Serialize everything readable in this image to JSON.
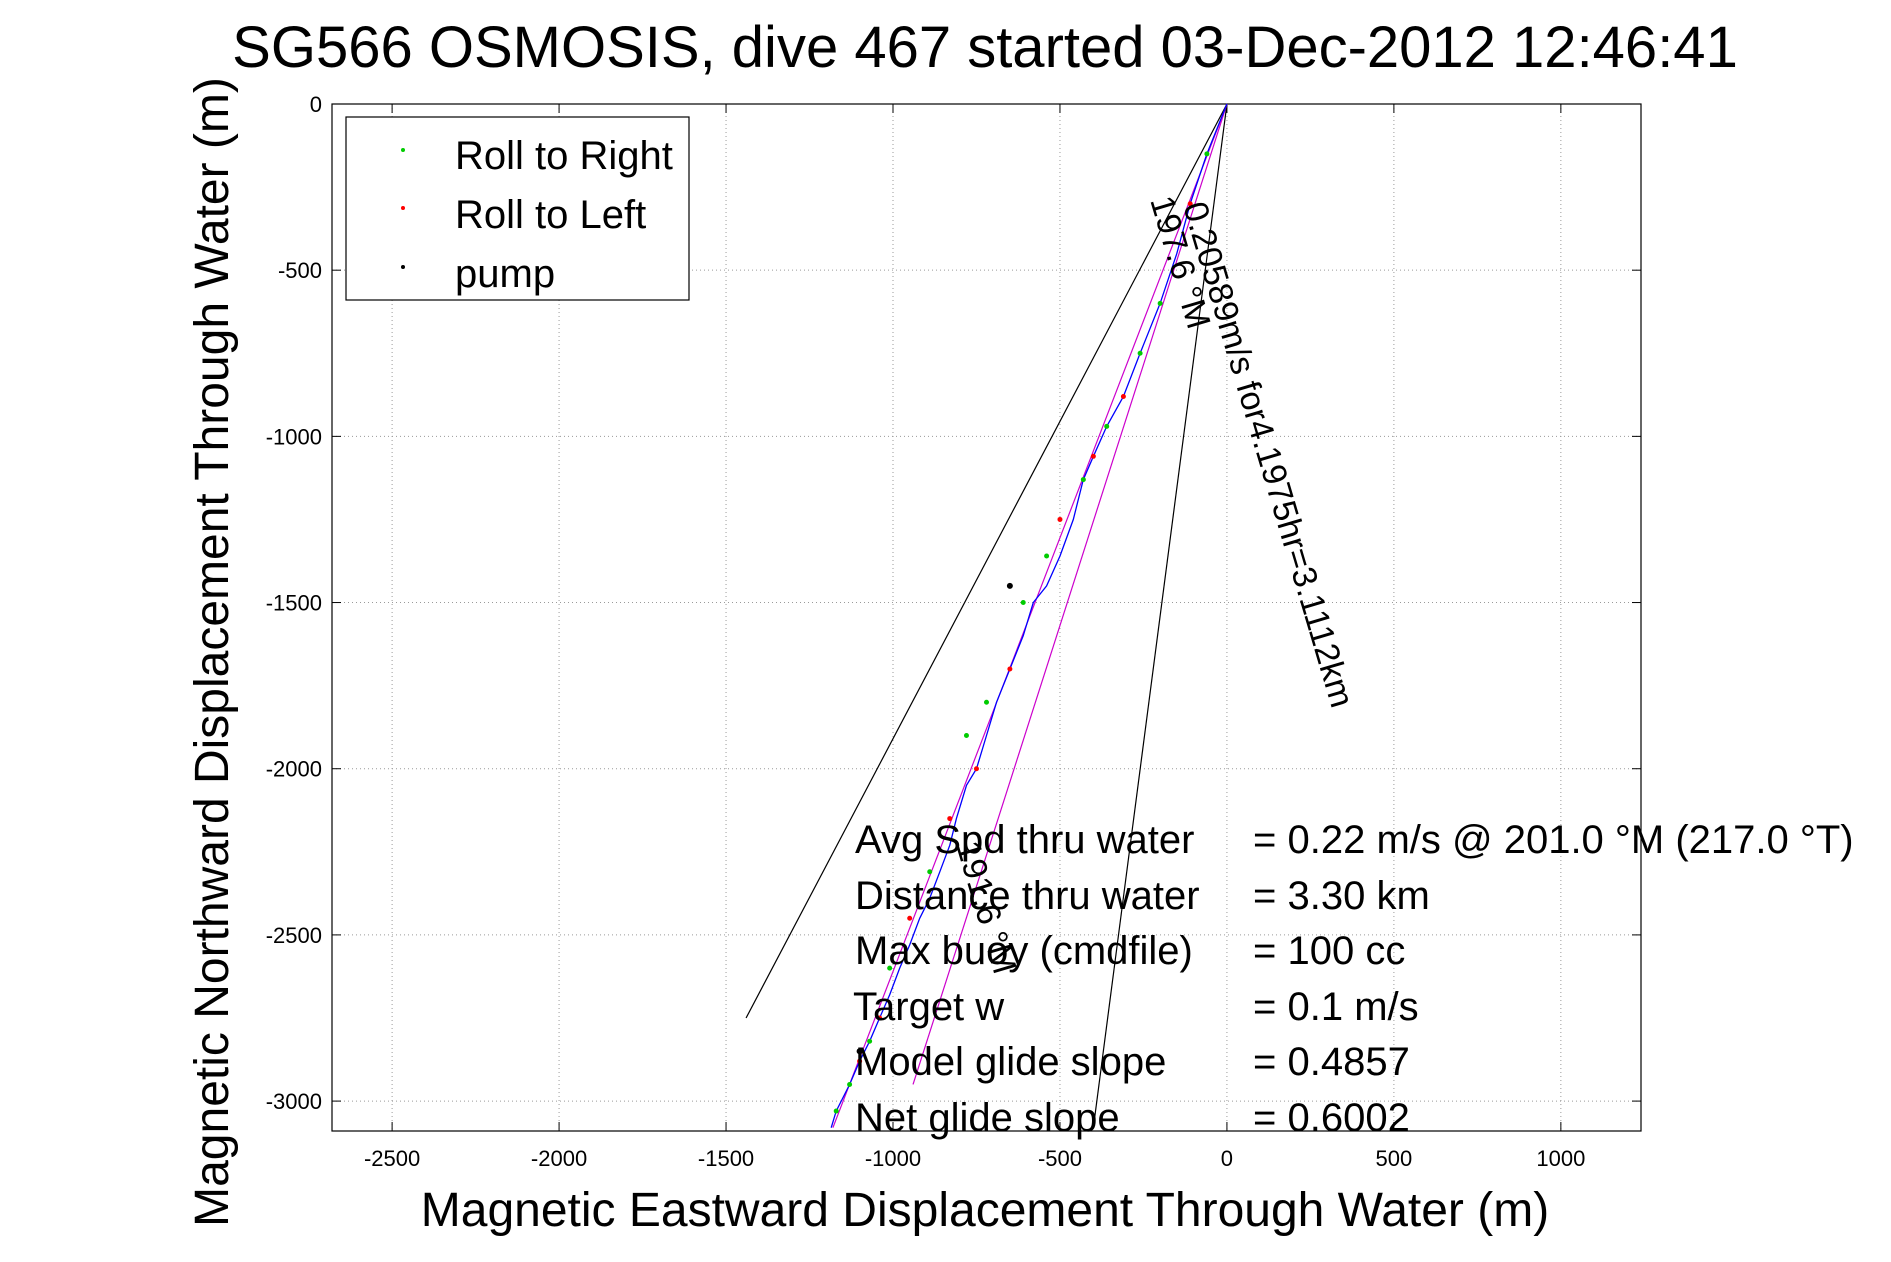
{
  "chart_data": {
    "type": "line",
    "title": "SG566 OSMOSIS, dive 467 started 03-Dec-2012 12:46:41",
    "xlabel": "Magnetic Eastward Displacement Through Water (m)",
    "ylabel": "Magnetic Northward Displacement Through Water (m)",
    "xlim": [
      -2680,
      1240
    ],
    "ylim": [
      -3090,
      0
    ],
    "xticks": [
      -2500,
      -2000,
      -1500,
      -1000,
      -500,
      0,
      500,
      1000
    ],
    "yticks": [
      0,
      -500,
      -1000,
      -1500,
      -2000,
      -2500,
      -3000
    ],
    "xtick_labels": [
      "-2500",
      "-2000",
      "-1500",
      "-1000",
      "-500",
      "0",
      "500",
      "1000"
    ],
    "ytick_labels": [
      "0",
      "-500",
      "-1000",
      "-1500",
      "-2000",
      "-2500",
      "-3000"
    ],
    "grid": true,
    "legend_position": "top-left",
    "legend": [
      {
        "label": "Roll to Right",
        "color": "#00cc00"
      },
      {
        "label": "Roll to Left",
        "color": "#ff0000"
      },
      {
        "label": "pump",
        "color": "#000000"
      }
    ],
    "track": {
      "color": "#0000ff",
      "x": [
        0,
        -60,
        -110,
        -150,
        -200,
        -260,
        -310,
        -360,
        -400,
        -430,
        -460,
        -500,
        -540,
        -580,
        -610,
        -650,
        -690,
        -720,
        -750,
        -780,
        -810,
        -830,
        -860,
        -890,
        -920,
        -950,
        -980,
        -1010,
        -1040,
        -1070,
        -1100,
        -1130,
        -1170,
        -1185
      ],
      "y": [
        0,
        -150,
        -300,
        -450,
        -600,
        -750,
        -880,
        -970,
        -1060,
        -1130,
        -1250,
        -1360,
        -1450,
        -1500,
        -1600,
        -1700,
        -1800,
        -1900,
        -2000,
        -2050,
        -2150,
        -2230,
        -2310,
        -2390,
        -2450,
        -2530,
        -2600,
        -2680,
        -2750,
        -2820,
        -2880,
        -2950,
        -3030,
        -3080
      ]
    },
    "roll_right_points": {
      "x": [
        -60,
        -200,
        -260,
        -360,
        -430,
        -540,
        -610,
        -720,
        -780,
        -890,
        -1010,
        -1070,
        -1130,
        -1170
      ],
      "y": [
        -150,
        -600,
        -750,
        -970,
        -1130,
        -1360,
        -1500,
        -1800,
        -1900,
        -2310,
        -2600,
        -2820,
        -2950,
        -3030
      ]
    },
    "roll_left_points": {
      "x": [
        -110,
        -310,
        -400,
        -500,
        -650,
        -750,
        -830,
        -950,
        -1040,
        -1100
      ],
      "y": [
        -300,
        -880,
        -1060,
        -1250,
        -1700,
        -2000,
        -2150,
        -2450,
        -2750,
        -2880
      ]
    },
    "pump_points": {
      "x": [
        -650,
        -1100
      ],
      "y": [
        -1450,
        -2850
      ]
    },
    "heading_lines": [
      {
        "color": "#000000",
        "x": [
          0,
          -1440
        ],
        "y": [
          0,
          -2750
        ]
      },
      {
        "color": "#000000",
        "x": [
          0,
          -400
        ],
        "y": [
          0,
          -3080
        ]
      },
      {
        "color": "#cc00cc",
        "x": [
          0,
          -1180
        ],
        "y": [
          0,
          -3080
        ]
      },
      {
        "color": "#cc00cc",
        "x": [
          0,
          -940
        ],
        "y": [
          0,
          -2950
        ]
      }
    ],
    "annotations": [
      {
        "text": "0.20589m/s for4.1975hr=3.1112km"
      },
      {
        "text": "197.6 °M"
      },
      {
        "text": "191.6 °M"
      }
    ],
    "stats": [
      {
        "label": "Avg Spd thru water",
        "value": "=  0.22 m/s @ 201.0 °M (217.0 °T)"
      },
      {
        "label": "Distance thru water",
        "value": "=  3.30 km"
      },
      {
        "label": "Max buoy (cmdfile)",
        "value": "= 100 cc"
      },
      {
        "label": "Target w",
        "value": "= 0.1 m/s"
      },
      {
        "label": "Model glide slope",
        "value": "= 0.4857"
      },
      {
        "label": "Net glide slope",
        "value": "= 0.6002"
      }
    ]
  }
}
